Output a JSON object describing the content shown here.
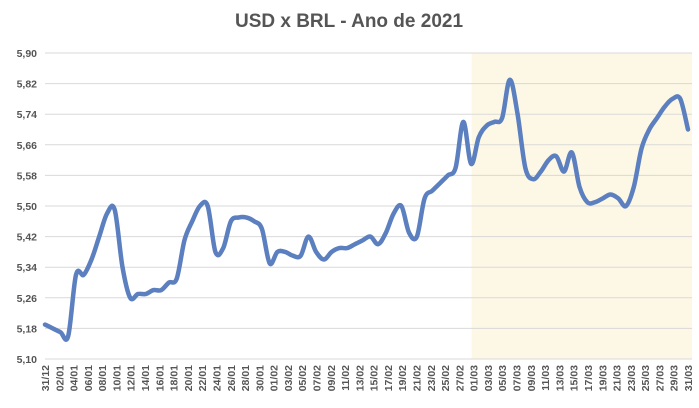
{
  "chart_data": {
    "type": "line",
    "title": "USD x BRL - Ano de 2021",
    "xlabel": "",
    "ylabel": "",
    "ylim": [
      5.1,
      5.9
    ],
    "yticks": [
      "5,90",
      "5,82",
      "5,74",
      "5,66",
      "5,58",
      "5,50",
      "5,42",
      "5,34",
      "5,26",
      "5,18",
      "5,10"
    ],
    "xticks": [
      "31/12",
      "02/01",
      "04/01",
      "06/01",
      "08/01",
      "10/01",
      "12/01",
      "14/01",
      "16/01",
      "18/01",
      "20/01",
      "22/01",
      "24/01",
      "26/01",
      "28/01",
      "30/01",
      "01/02",
      "03/02",
      "05/02",
      "07/02",
      "09/02",
      "11/02",
      "13/02",
      "15/02",
      "17/02",
      "19/02",
      "21/02",
      "23/02",
      "25/02",
      "27/02",
      "01/03",
      "03/03",
      "05/03",
      "07/03",
      "09/03",
      "11/03",
      "13/03",
      "15/03",
      "17/03",
      "19/03",
      "21/03",
      "23/03",
      "25/03",
      "27/03",
      "29/03",
      "31/03"
    ],
    "highlight": {
      "from": "01/03",
      "to": "31/03",
      "color": "#fdf8e6"
    },
    "line_color": "#5b7fbf",
    "grid": true,
    "series": [
      {
        "values": [
          5.19,
          5.18,
          5.17,
          5.16,
          5.32,
          5.32,
          5.36,
          5.42,
          5.48,
          5.49,
          5.34,
          5.26,
          5.27,
          5.27,
          5.28,
          5.28,
          5.3,
          5.31,
          5.41,
          5.46,
          5.5,
          5.5,
          5.38,
          5.39,
          5.46,
          5.47,
          5.47,
          5.46,
          5.44,
          5.35,
          5.38,
          5.38,
          5.37,
          5.37,
          5.42,
          5.38,
          5.36,
          5.38,
          5.39,
          5.39,
          5.4,
          5.41,
          5.42,
          5.4,
          5.43,
          5.48,
          5.5,
          5.43,
          5.42,
          5.52,
          5.54,
          5.56,
          5.58,
          5.6,
          5.72,
          5.61,
          5.68,
          5.71,
          5.72,
          5.73,
          5.83,
          5.74,
          5.6,
          5.57,
          5.59,
          5.62,
          5.63,
          5.59,
          5.64,
          5.55,
          5.51,
          5.51,
          5.52,
          5.53,
          5.52,
          5.5,
          5.55,
          5.65,
          5.7,
          5.73,
          5.76,
          5.78,
          5.78,
          5.7
        ]
      }
    ]
  }
}
